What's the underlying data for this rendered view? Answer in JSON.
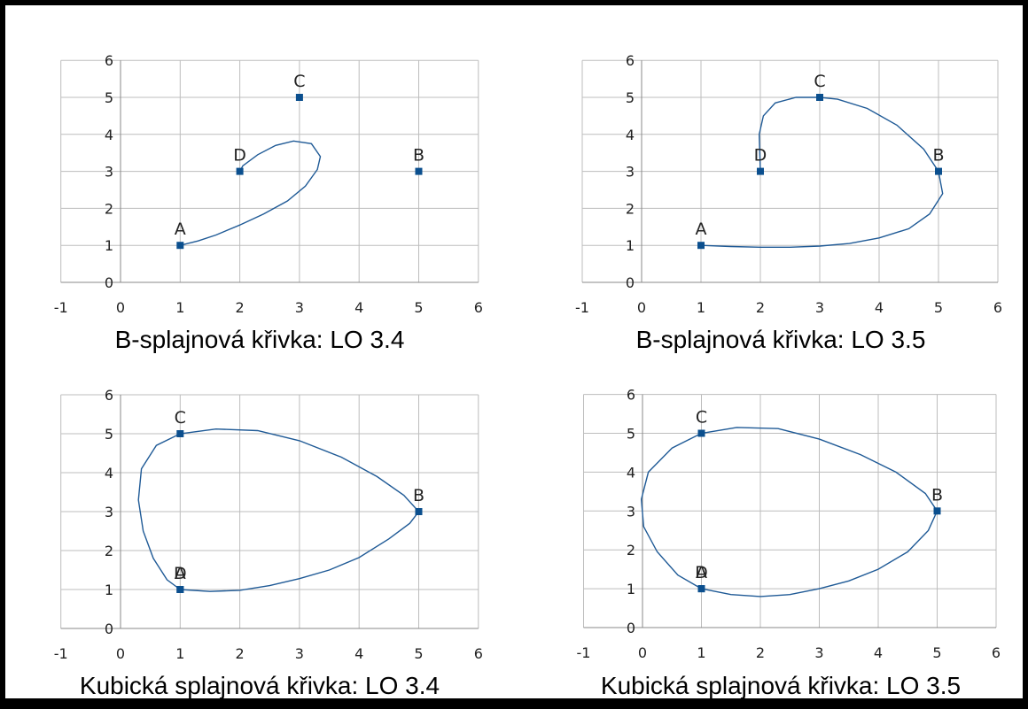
{
  "chart_data": [
    {
      "type": "scatter",
      "title": "B-splajnová křivka: LO 3.4",
      "xlim": [
        -1,
        6
      ],
      "ylim": [
        0,
        6
      ],
      "xticks": [
        "-1",
        "0",
        "1",
        "2",
        "3",
        "4",
        "5",
        "6"
      ],
      "yticks": [
        "0",
        "1",
        "2",
        "3",
        "4",
        "5",
        "6"
      ],
      "grid": true,
      "points": [
        {
          "label": "A",
          "x": 1,
          "y": 1
        },
        {
          "label": "B",
          "x": 5,
          "y": 3
        },
        {
          "label": "C",
          "x": 3,
          "y": 5
        },
        {
          "label": "D",
          "x": 2,
          "y": 3
        }
      ],
      "curve": [
        [
          1,
          1
        ],
        [
          1.3,
          1.12
        ],
        [
          1.6,
          1.28
        ],
        [
          2,
          1.55
        ],
        [
          2.4,
          1.85
        ],
        [
          2.8,
          2.2
        ],
        [
          3.1,
          2.6
        ],
        [
          3.3,
          3.05
        ],
        [
          3.35,
          3.4
        ],
        [
          3.2,
          3.75
        ],
        [
          2.9,
          3.82
        ],
        [
          2.6,
          3.7
        ],
        [
          2.3,
          3.45
        ],
        [
          2.05,
          3.15
        ],
        [
          2,
          3
        ]
      ]
    },
    {
      "type": "scatter",
      "title": "B-splajnová křivka: LO 3.5",
      "xlim": [
        -1,
        6
      ],
      "ylim": [
        0,
        6
      ],
      "xticks": [
        "-1",
        "0",
        "1",
        "2",
        "3",
        "4",
        "5",
        "6"
      ],
      "yticks": [
        "0",
        "1",
        "2",
        "3",
        "4",
        "5",
        "6"
      ],
      "grid": true,
      "points": [
        {
          "label": "A",
          "x": 1,
          "y": 1
        },
        {
          "label": "B",
          "x": 5,
          "y": 3
        },
        {
          "label": "C",
          "x": 3,
          "y": 5
        },
        {
          "label": "D",
          "x": 2,
          "y": 3
        }
      ],
      "curve": [
        [
          1,
          1
        ],
        [
          1.5,
          0.97
        ],
        [
          2,
          0.95
        ],
        [
          2.5,
          0.95
        ],
        [
          3,
          0.98
        ],
        [
          3.5,
          1.05
        ],
        [
          4,
          1.2
        ],
        [
          4.5,
          1.45
        ],
        [
          4.85,
          1.85
        ],
        [
          5.07,
          2.4
        ],
        [
          5,
          3
        ],
        [
          4.75,
          3.6
        ],
        [
          4.3,
          4.25
        ],
        [
          3.8,
          4.7
        ],
        [
          3.3,
          4.95
        ],
        [
          3,
          5
        ],
        [
          2.6,
          5
        ],
        [
          2.25,
          4.85
        ],
        [
          2.05,
          4.5
        ],
        [
          1.98,
          4
        ],
        [
          2,
          3
        ]
      ]
    },
    {
      "type": "scatter",
      "title": "Kubická splajnová křivka: LO 3.4",
      "xlim": [
        -1,
        6
      ],
      "ylim": [
        0,
        6
      ],
      "xticks": [
        "-1",
        "0",
        "1",
        "2",
        "3",
        "4",
        "5",
        "6"
      ],
      "yticks": [
        "0",
        "1",
        "2",
        "3",
        "4",
        "5",
        "6"
      ],
      "grid": true,
      "points": [
        {
          "label": "A",
          "x": 1,
          "y": 1
        },
        {
          "label": "B",
          "x": 5,
          "y": 3
        },
        {
          "label": "C",
          "x": 1,
          "y": 5
        },
        {
          "label": "D",
          "x": 1,
          "y": 1
        }
      ],
      "curve": [
        [
          1,
          1
        ],
        [
          1.5,
          0.95
        ],
        [
          2,
          0.98
        ],
        [
          2.5,
          1.1
        ],
        [
          3,
          1.28
        ],
        [
          3.5,
          1.5
        ],
        [
          4,
          1.82
        ],
        [
          4.5,
          2.3
        ],
        [
          4.85,
          2.7
        ],
        [
          5,
          3
        ],
        [
          4.75,
          3.42
        ],
        [
          4.3,
          3.9
        ],
        [
          3.7,
          4.4
        ],
        [
          3,
          4.82
        ],
        [
          2.3,
          5.08
        ],
        [
          1.6,
          5.12
        ],
        [
          1,
          5
        ],
        [
          0.6,
          4.7
        ],
        [
          0.35,
          4.1
        ],
        [
          0.3,
          3.3
        ],
        [
          0.38,
          2.5
        ],
        [
          0.55,
          1.8
        ],
        [
          0.78,
          1.25
        ],
        [
          1,
          1
        ]
      ]
    },
    {
      "type": "scatter",
      "title": "Kubická splajnová křivka: LO 3.5",
      "xlim": [
        -1,
        6
      ],
      "ylim": [
        0,
        6
      ],
      "xticks": [
        "-1",
        "0",
        "1",
        "2",
        "3",
        "4",
        "5",
        "6"
      ],
      "yticks": [
        "0",
        "1",
        "2",
        "3",
        "4",
        "5",
        "6"
      ],
      "grid": true,
      "points": [
        {
          "label": "A",
          "x": 1,
          "y": 1
        },
        {
          "label": "B",
          "x": 5,
          "y": 3
        },
        {
          "label": "C",
          "x": 1,
          "y": 5
        },
        {
          "label": "D",
          "x": 1,
          "y": 1
        }
      ],
      "curve": [
        [
          1,
          1
        ],
        [
          1.5,
          0.85
        ],
        [
          2,
          0.8
        ],
        [
          2.5,
          0.85
        ],
        [
          3,
          1
        ],
        [
          3.5,
          1.2
        ],
        [
          4,
          1.5
        ],
        [
          4.5,
          1.95
        ],
        [
          4.85,
          2.5
        ],
        [
          5,
          3
        ],
        [
          4.8,
          3.45
        ],
        [
          4.3,
          4
        ],
        [
          3.7,
          4.45
        ],
        [
          3,
          4.85
        ],
        [
          2.3,
          5.12
        ],
        [
          1.6,
          5.15
        ],
        [
          1,
          5
        ],
        [
          0.5,
          4.62
        ],
        [
          0.1,
          4
        ],
        [
          -0.02,
          3.3
        ],
        [
          0.02,
          2.6
        ],
        [
          0.25,
          1.95
        ],
        [
          0.6,
          1.35
        ],
        [
          1,
          1
        ]
      ]
    }
  ]
}
